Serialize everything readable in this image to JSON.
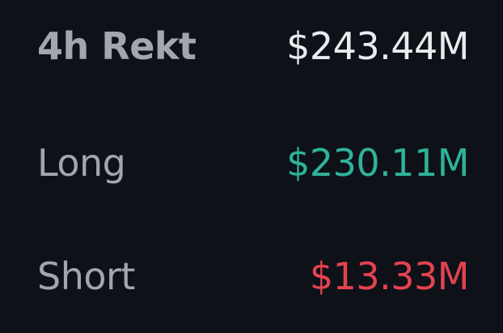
{
  "rekt": {
    "title": "4h Rekt",
    "total": "$243.44M",
    "rows": [
      {
        "label": "Long",
        "value": "$230.11M"
      },
      {
        "label": "Short",
        "value": "$13.33M"
      }
    ]
  },
  "colors": {
    "background": "#0e1118",
    "label": "#a1a6b0",
    "total": "#e9ebef",
    "long": "#2eb39a",
    "short": "#e4424f"
  }
}
